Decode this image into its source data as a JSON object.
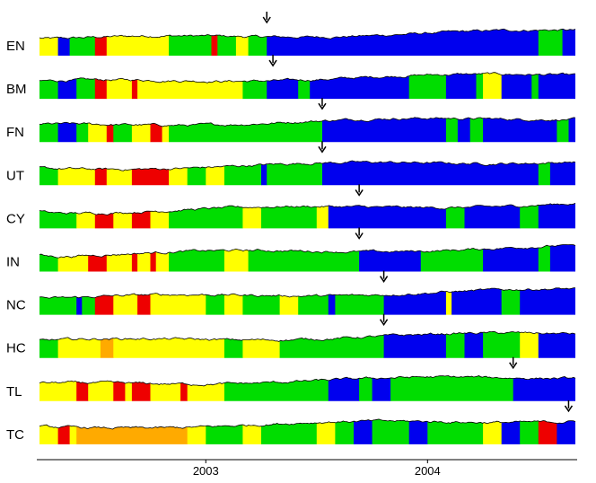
{
  "chart_data": {
    "type": "area",
    "title": "",
    "xlabel": "",
    "ylabel": "",
    "x_range": [
      "2002-04",
      "2004-09"
    ],
    "x_ticks": [
      "2003",
      "2004"
    ],
    "grid": false,
    "legend": "none",
    "state_colors": {
      "green": "#00dd00",
      "yellow": "#ffff00",
      "red": "#ee0000",
      "blue": "#0000ee",
      "orange": "#ffaa00"
    },
    "series": [
      {
        "name": "EN",
        "arrow_date": "2003-04-10",
        "segments": [
          [
            "2002-04",
            "yellow"
          ],
          [
            "2002-05",
            "blue"
          ],
          [
            "2002-05-20",
            "green"
          ],
          [
            "2002-07",
            "red"
          ],
          [
            "2002-07-20",
            "yellow"
          ],
          [
            "2002-11",
            "green"
          ],
          [
            "2003-01-10",
            "red"
          ],
          [
            "2003-01-20",
            "green"
          ],
          [
            "2003-02-20",
            "yellow"
          ],
          [
            "2003-03-10",
            "green"
          ],
          [
            "2003-04-10",
            "blue"
          ],
          [
            "2004-07",
            "green"
          ],
          [
            "2004-08-10",
            "blue"
          ]
        ]
      },
      {
        "name": "BM",
        "arrow_date": "2003-04-20",
        "segments": [
          [
            "2002-04",
            "green"
          ],
          [
            "2002-05",
            "blue"
          ],
          [
            "2002-06",
            "green"
          ],
          [
            "2002-07",
            "red"
          ],
          [
            "2002-07-20",
            "yellow"
          ],
          [
            "2002-09",
            "red"
          ],
          [
            "2002-09-10",
            "yellow"
          ],
          [
            "2003-03",
            "green"
          ],
          [
            "2003-04-10",
            "blue"
          ],
          [
            "2003-06",
            "green"
          ],
          [
            "2003-06-20",
            "blue"
          ],
          [
            "2003-12",
            "green"
          ],
          [
            "2004-02",
            "blue"
          ],
          [
            "2004-03-20",
            "green"
          ],
          [
            "2004-04",
            "yellow"
          ],
          [
            "2004-05",
            "blue"
          ],
          [
            "2004-06-20",
            "green"
          ],
          [
            "2004-07",
            "blue"
          ]
        ]
      },
      {
        "name": "FN",
        "arrow_date": "2003-07-10",
        "segments": [
          [
            "2002-04",
            "green"
          ],
          [
            "2002-05",
            "blue"
          ],
          [
            "2002-06",
            "green"
          ],
          [
            "2002-06-20",
            "yellow"
          ],
          [
            "2002-07-20",
            "red"
          ],
          [
            "2002-08",
            "green"
          ],
          [
            "2002-09",
            "yellow"
          ],
          [
            "2002-10",
            "red"
          ],
          [
            "2002-10-20",
            "yellow"
          ],
          [
            "2002-11",
            "green"
          ],
          [
            "2003-07-10",
            "blue"
          ],
          [
            "2004-02",
            "green"
          ],
          [
            "2004-02-20",
            "blue"
          ],
          [
            "2004-03-10",
            "green"
          ],
          [
            "2004-04",
            "blue"
          ],
          [
            "2004-08",
            "green"
          ],
          [
            "2004-08-20",
            "blue"
          ]
        ]
      },
      {
        "name": "UT",
        "arrow_date": "2003-07-10",
        "segments": [
          [
            "2002-04",
            "green"
          ],
          [
            "2002-05",
            "yellow"
          ],
          [
            "2002-07",
            "red"
          ],
          [
            "2002-07-20",
            "yellow"
          ],
          [
            "2002-09",
            "red"
          ],
          [
            "2002-11",
            "yellow"
          ],
          [
            "2002-12",
            "green"
          ],
          [
            "2003-01",
            "yellow"
          ],
          [
            "2003-02",
            "green"
          ],
          [
            "2003-04",
            "blue"
          ],
          [
            "2003-04-10",
            "green"
          ],
          [
            "2003-07-10",
            "blue"
          ],
          [
            "2004-07",
            "green"
          ],
          [
            "2004-07-20",
            "blue"
          ]
        ]
      },
      {
        "name": "CY",
        "arrow_date": "2003-09-10",
        "segments": [
          [
            "2002-04",
            "green"
          ],
          [
            "2002-06",
            "yellow"
          ],
          [
            "2002-07",
            "red"
          ],
          [
            "2002-08",
            "yellow"
          ],
          [
            "2002-09",
            "red"
          ],
          [
            "2002-10",
            "yellow"
          ],
          [
            "2002-11",
            "green"
          ],
          [
            "2003-03",
            "yellow"
          ],
          [
            "2003-04",
            "green"
          ],
          [
            "2003-07",
            "yellow"
          ],
          [
            "2003-07-20",
            "blue"
          ],
          [
            "2003-09-10",
            "blue"
          ],
          [
            "2004-02",
            "green"
          ],
          [
            "2004-03",
            "blue"
          ],
          [
            "2004-06",
            "green"
          ],
          [
            "2004-07",
            "blue"
          ]
        ]
      },
      {
        "name": "IN",
        "arrow_date": "2003-09-10",
        "segments": [
          [
            "2002-04",
            "green"
          ],
          [
            "2002-05",
            "yellow"
          ],
          [
            "2002-06-20",
            "red"
          ],
          [
            "2002-07-20",
            "yellow"
          ],
          [
            "2002-09",
            "red"
          ],
          [
            "2002-09-10",
            "yellow"
          ],
          [
            "2002-10",
            "red"
          ],
          [
            "2002-10-10",
            "yellow"
          ],
          [
            "2002-11",
            "green"
          ],
          [
            "2003-02",
            "yellow"
          ],
          [
            "2003-03-10",
            "green"
          ],
          [
            "2003-09-10",
            "blue"
          ],
          [
            "2003-12-20",
            "green"
          ],
          [
            "2004-04",
            "blue"
          ],
          [
            "2004-07",
            "green"
          ],
          [
            "2004-07-20",
            "blue"
          ]
        ]
      },
      {
        "name": "NC",
        "arrow_date": "2003-10-20",
        "segments": [
          [
            "2002-04",
            "green"
          ],
          [
            "2002-06",
            "blue"
          ],
          [
            "2002-06-10",
            "green"
          ],
          [
            "2002-07",
            "red"
          ],
          [
            "2002-08",
            "yellow"
          ],
          [
            "2002-09-10",
            "red"
          ],
          [
            "2002-10",
            "yellow"
          ],
          [
            "2003-01",
            "green"
          ],
          [
            "2003-02",
            "yellow"
          ],
          [
            "2003-03",
            "green"
          ],
          [
            "2003-05",
            "yellow"
          ],
          [
            "2003-06",
            "green"
          ],
          [
            "2003-07-20",
            "blue"
          ],
          [
            "2003-08",
            "green"
          ],
          [
            "2003-10-20",
            "blue"
          ],
          [
            "2004-02",
            "yellow"
          ],
          [
            "2004-02-10",
            "blue"
          ],
          [
            "2004-05",
            "green"
          ],
          [
            "2004-06",
            "blue"
          ]
        ]
      },
      {
        "name": "HC",
        "arrow_date": "2003-10-20",
        "segments": [
          [
            "2002-04",
            "green"
          ],
          [
            "2002-05",
            "yellow"
          ],
          [
            "2002-07-10",
            "orange"
          ],
          [
            "2002-08",
            "yellow"
          ],
          [
            "2003-02",
            "green"
          ],
          [
            "2003-03",
            "yellow"
          ],
          [
            "2003-05",
            "green"
          ],
          [
            "2003-10-20",
            "blue"
          ],
          [
            "2004-02",
            "green"
          ],
          [
            "2004-03",
            "blue"
          ],
          [
            "2004-04",
            "green"
          ],
          [
            "2004-06",
            "yellow"
          ],
          [
            "2004-07",
            "blue"
          ]
        ]
      },
      {
        "name": "TL",
        "arrow_date": "2004-05-20",
        "segments": [
          [
            "2002-04",
            "yellow"
          ],
          [
            "2002-06",
            "red"
          ],
          [
            "2002-06-20",
            "yellow"
          ],
          [
            "2002-08",
            "red"
          ],
          [
            "2002-08-20",
            "yellow"
          ],
          [
            "2002-09",
            "red"
          ],
          [
            "2002-10",
            "yellow"
          ],
          [
            "2002-11-20",
            "red"
          ],
          [
            "2002-12",
            "yellow"
          ],
          [
            "2003-02",
            "green"
          ],
          [
            "2003-07-20",
            "blue"
          ],
          [
            "2003-09-10",
            "green"
          ],
          [
            "2003-10",
            "blue"
          ],
          [
            "2003-11",
            "green"
          ],
          [
            "2004-05-20",
            "blue"
          ]
        ]
      },
      {
        "name": "TC",
        "arrow_date": "2004-08-20",
        "segments": [
          [
            "2002-04",
            "yellow"
          ],
          [
            "2002-05",
            "red"
          ],
          [
            "2002-05-20",
            "yellow"
          ],
          [
            "2002-06",
            "orange"
          ],
          [
            "2002-12",
            "yellow"
          ],
          [
            "2003-01",
            "green"
          ],
          [
            "2003-03",
            "yellow"
          ],
          [
            "2003-04",
            "green"
          ],
          [
            "2003-07",
            "yellow"
          ],
          [
            "2003-08",
            "green"
          ],
          [
            "2003-09",
            "blue"
          ],
          [
            "2003-10",
            "green"
          ],
          [
            "2003-12",
            "blue"
          ],
          [
            "2004-01",
            "green"
          ],
          [
            "2004-04",
            "yellow"
          ],
          [
            "2004-05",
            "blue"
          ],
          [
            "2004-06",
            "green"
          ],
          [
            "2004-07",
            "red"
          ],
          [
            "2004-08",
            "blue"
          ]
        ]
      }
    ]
  }
}
